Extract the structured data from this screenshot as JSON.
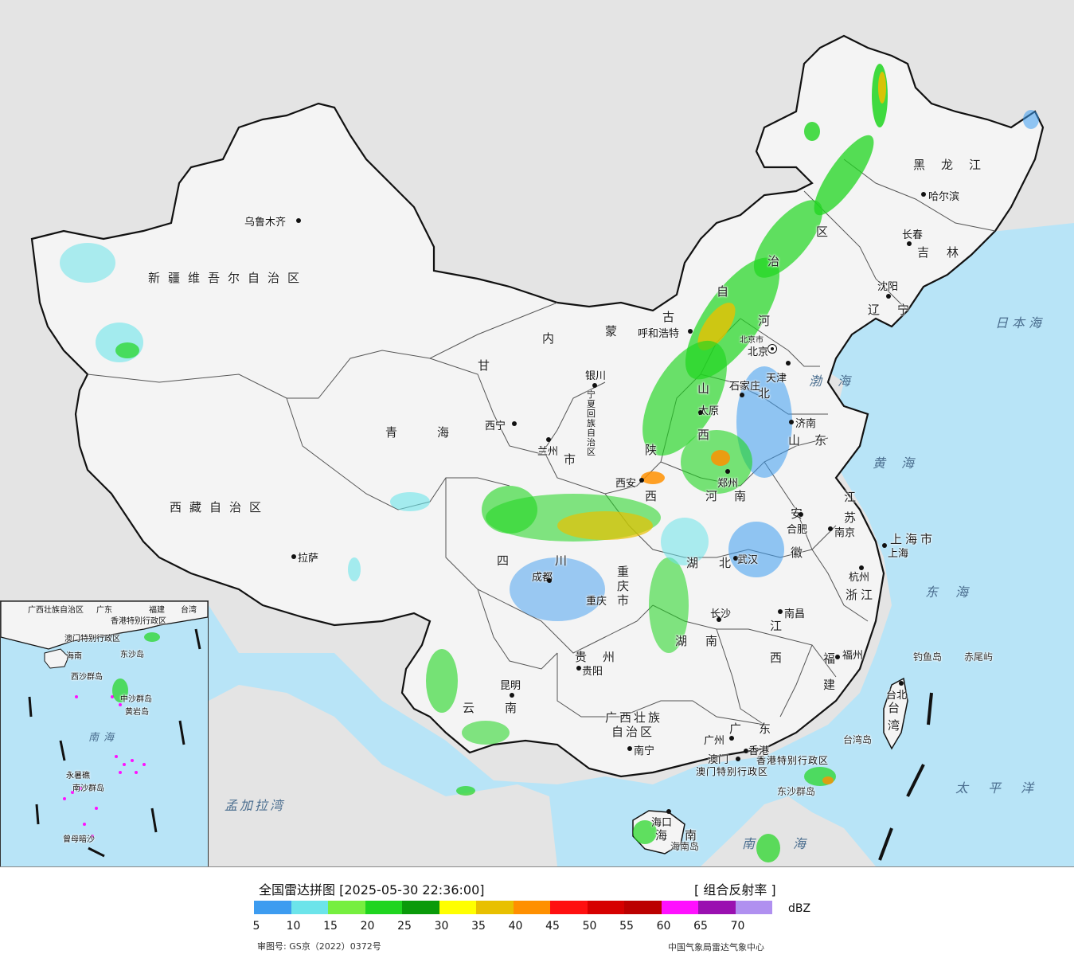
{
  "map": {
    "title": "全国雷达拼图 [2025-05-30 22:36:00]",
    "product": "[ 组合反射率 ]",
    "approval_number": "审图号: GS京（2022）0372号",
    "producer": "中国气象局雷达气象中心",
    "colors": {
      "land": "#f4f4f4",
      "sea": "#b8e4f7",
      "background": "#e4e4e4",
      "border": "#111111"
    }
  },
  "legend": {
    "unit": "dBZ",
    "ticks": [
      "5",
      "10",
      "15",
      "20",
      "25",
      "30",
      "35",
      "40",
      "45",
      "50",
      "55",
      "60",
      "65",
      "70"
    ],
    "colors": [
      "#3d9cf0",
      "#6ce4ea",
      "#76ef3f",
      "#1fd51f",
      "#0a9a0a",
      "#ffff00",
      "#e8c000",
      "#ff9000",
      "#ff1010",
      "#d60000",
      "#bb0000",
      "#ff10ff",
      "#9a10b0",
      "#b090f0"
    ]
  },
  "provinces": {
    "xinjiang": "新疆维吾尔自治区",
    "xizang": "西藏自治区",
    "qinghai": "青海",
    "gansu": "甘",
    "neimenggu_1": "内",
    "neimenggu_2": "蒙",
    "neimenggu_3": "古",
    "neimenggu_4": "自",
    "neimenggu_5": "治",
    "neimenggu_6": "区",
    "ningxia": "宁夏回族自治区",
    "heilongjiang": "黑龙江",
    "jilin": "吉林",
    "liaoning": "辽宁",
    "hebei": "河",
    "hebei2": "北",
    "beijing": "北京市",
    "tianjin": "天津",
    "shanxi_1": "山",
    "shanxi_2": "西",
    "shandong": "山东",
    "shaanxi_1": "陕",
    "shaanxi_2": "西",
    "henan_1": "河",
    "henan_2": "南",
    "jiangsu": "江苏",
    "anhui_1": "安",
    "anhui_2": "徽",
    "shanghai": "上海市",
    "zhejiang": "浙江",
    "sichuan": "四川",
    "chongqing": "重庆市",
    "hubei_1": "湖",
    "hubei_2": "北",
    "hunan_1": "湖",
    "hunan_2": "南",
    "jiangxi_1": "江",
    "jiangxi_2": "西",
    "fujian_1": "福",
    "fujian_2": "建",
    "guizhou": "贵州",
    "yunnan": "云南",
    "guangxi_1": "广西壮族",
    "guangxi_2": "自治区",
    "guangdong": "广东",
    "hainan_1": "海",
    "hainan_2": "南",
    "taiwan": "台湾",
    "hongkong": "香港特别行政区",
    "macau": "澳门特别行政区",
    "gansu_city": "市"
  },
  "cities": {
    "urumqi": "乌鲁木齐",
    "lhasa": "拉萨",
    "xining": "西宁",
    "lanzhou": "兰州",
    "yinchuan": "银川",
    "hohhot": "呼和浩特",
    "harbin": "哈尔滨",
    "changchun": "长春",
    "shenyang": "沈阳",
    "beijing": "北京",
    "tianjin": "天津",
    "shijiazhuang": "石家庄",
    "taiyuan": "太原",
    "jinan": "济南",
    "xian": "西安",
    "zhengzhou": "郑州",
    "hefei": "合肥",
    "nanjing": "南京",
    "shanghai": "上海",
    "hangzhou": "杭州",
    "wuhan": "武汉",
    "chengdu": "成都",
    "chongqing": "重庆",
    "changsha": "长沙",
    "nanchang": "南昌",
    "fuzhou": "福州",
    "taipei": "台北",
    "guiyang": "贵阳",
    "kunming": "昆明",
    "nanning": "南宁",
    "guangzhou": "广州",
    "macao": "澳门",
    "hongkong": "香港",
    "haikou": "海口"
  },
  "seas": {
    "japan_sea": "日本海",
    "bohai": "渤海",
    "yellow_sea": "黄海",
    "east_sea": "东海",
    "pacific": "太平洋",
    "south_sea": "南海",
    "bengal": "孟加拉湾"
  },
  "islands": {
    "diaoyu": "钓鱼岛",
    "chiwei": "赤尾屿",
    "taiwan_island": "台湾岛",
    "dongsha": "东沙群岛",
    "hainan_island": "海南岛"
  },
  "inset": {
    "guangxi": "广西壮族自治区",
    "guangdong": "广东",
    "fujian": "福建",
    "taiwan": "台湾",
    "hongkong": "香港特别行政区",
    "macau": "澳门特别行政区",
    "hainan": "海南",
    "xisha": "西沙群岛",
    "zhongsha": "中沙群岛",
    "huangyan": "黄岩岛",
    "nanhai": "南海",
    "nansha": "南沙群岛",
    "yongshu": "永暑礁",
    "zengmu": "曾母暗沙",
    "dongsha": "东沙岛"
  }
}
